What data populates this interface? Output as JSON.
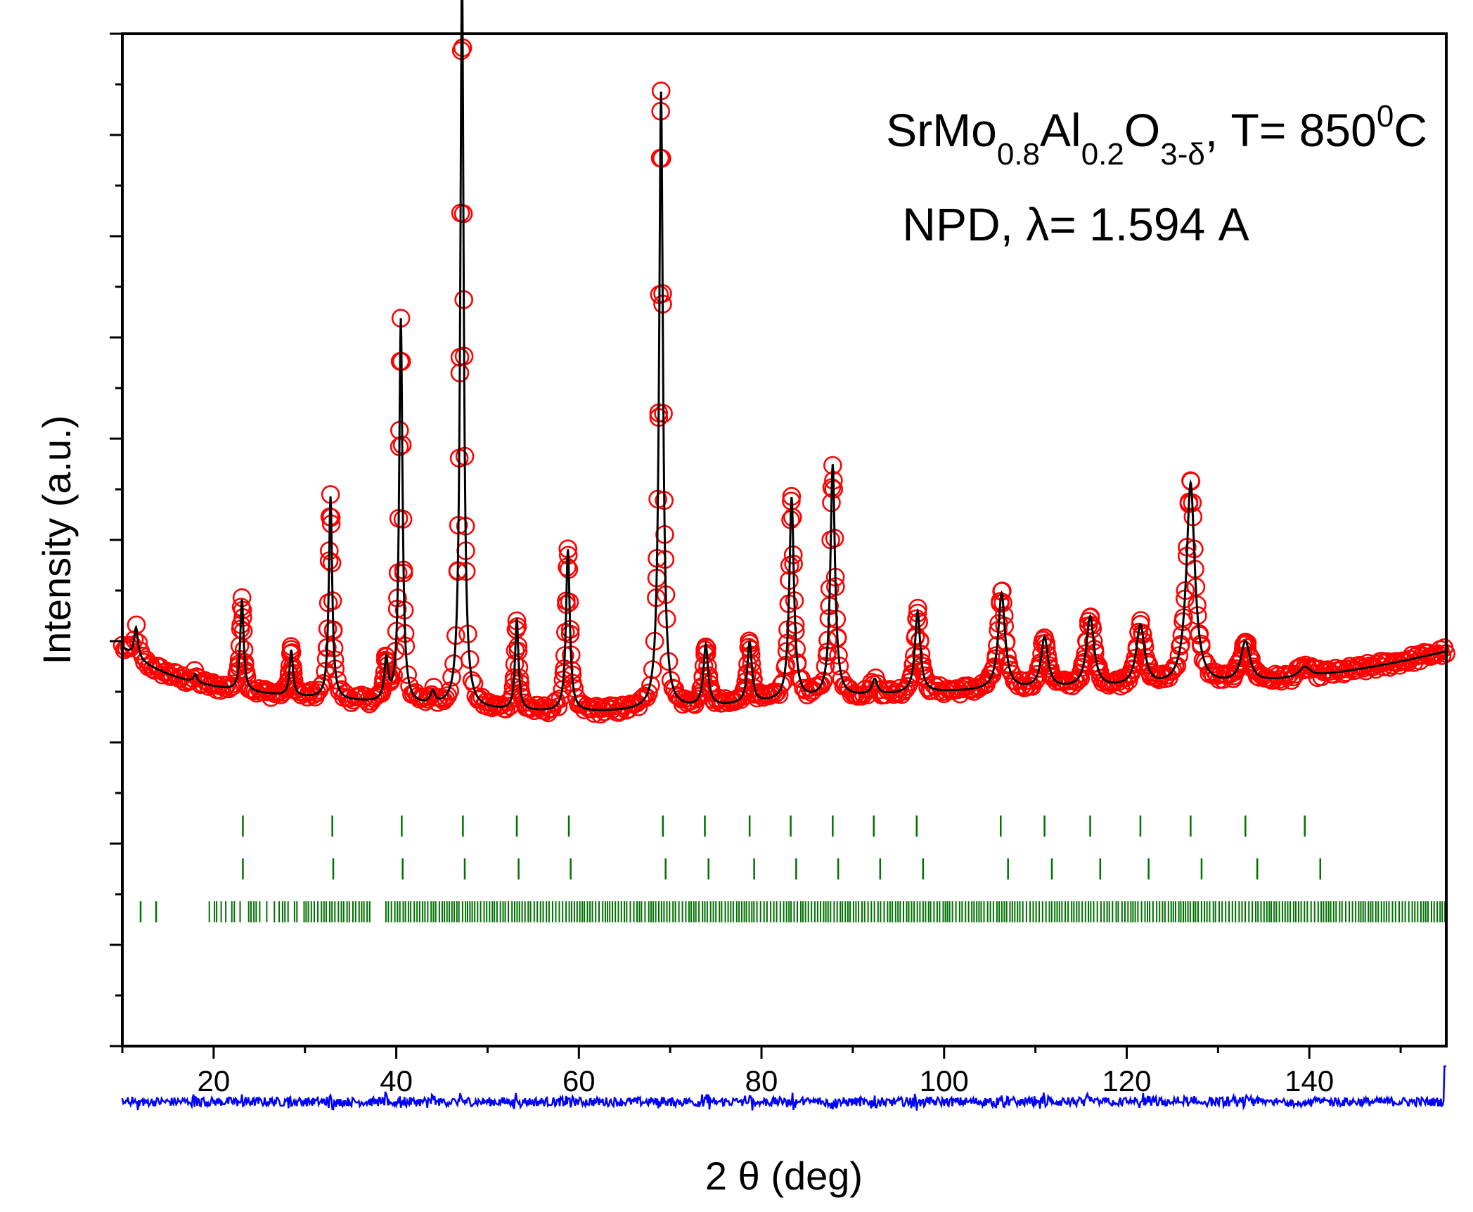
{
  "chart_data": {
    "type": "scatter",
    "title": "",
    "xlabel": "2 θ (deg)",
    "ylabel": "Intensity (a.u.)",
    "xlim": [
      10,
      155
    ],
    "ylim": [
      0,
      10
    ],
    "x_ticks": [
      20,
      40,
      60,
      80,
      100,
      120,
      140
    ],
    "y_tick_labels_shown": false,
    "annotation": {
      "line1": {
        "main": "SrMo",
        "sub1": "0.8",
        "el2": "Al",
        "sub2": "0.2",
        "el3": "O",
        "sub3": "3-δ",
        "tail": ", T= 850",
        "sup": "0",
        "unit": "C"
      },
      "line2": "NPD, λ= 1.594 A"
    },
    "background": {
      "level": 3.5,
      "low_curve_x": 60,
      "high_end": 3.95
    },
    "peaks": [
      {
        "x": 11.5,
        "height": 0.3,
        "width": 0.25
      },
      {
        "x": 18.0,
        "height": 0.08,
        "width": 0.25
      },
      {
        "x": 23.1,
        "height": 0.9,
        "width": 0.22
      },
      {
        "x": 28.5,
        "height": 0.45,
        "width": 0.22
      },
      {
        "x": 32.8,
        "height": 2.0,
        "width": 0.22
      },
      {
        "x": 38.9,
        "height": 0.4,
        "width": 0.25
      },
      {
        "x": 40.5,
        "height": 3.8,
        "width": 0.22
      },
      {
        "x": 44.0,
        "height": 0.12,
        "width": 0.3
      },
      {
        "x": 47.2,
        "height": 7.3,
        "width": 0.22
      },
      {
        "x": 53.2,
        "height": 0.9,
        "width": 0.22
      },
      {
        "x": 58.8,
        "height": 1.6,
        "width": 0.25
      },
      {
        "x": 69.0,
        "height": 6.1,
        "width": 0.25
      },
      {
        "x": 73.9,
        "height": 0.6,
        "width": 0.3
      },
      {
        "x": 78.7,
        "height": 0.6,
        "width": 0.3
      },
      {
        "x": 83.3,
        "height": 2.0,
        "width": 0.3
      },
      {
        "x": 87.8,
        "height": 2.3,
        "width": 0.3
      },
      {
        "x": 92.4,
        "height": 0.15,
        "width": 0.35
      },
      {
        "x": 97.1,
        "height": 0.8,
        "width": 0.35
      },
      {
        "x": 106.3,
        "height": 0.95,
        "width": 0.45
      },
      {
        "x": 111.0,
        "height": 0.5,
        "width": 0.45
      },
      {
        "x": 116.0,
        "height": 0.7,
        "width": 0.5
      },
      {
        "x": 121.5,
        "height": 0.6,
        "width": 0.55
      },
      {
        "x": 127.0,
        "height": 2.0,
        "width": 0.55
      },
      {
        "x": 133.0,
        "height": 0.4,
        "width": 0.6
      },
      {
        "x": 139.5,
        "height": 0.1,
        "width": 0.7
      }
    ],
    "bragg_markers": {
      "row1": [
        23.2,
        33.0,
        40.6,
        47.3,
        53.2,
        58.9,
        69.2,
        73.8,
        78.7,
        83.2,
        87.8,
        92.3,
        97.0,
        106.2,
        111.0,
        116.0,
        121.5,
        127.0,
        133.0,
        139.5
      ],
      "row2": [
        23.2,
        33.1,
        40.7,
        47.5,
        53.4,
        59.1,
        69.5,
        74.2,
        79.2,
        83.8,
        88.4,
        93.0,
        97.7,
        107.0,
        111.8,
        117.1,
        122.4,
        128.2,
        134.3,
        141.2
      ],
      "row3_range": [
        12,
        155
      ],
      "row3_gaps": [
        [
          14,
          18
        ],
        [
          37.2,
          38.8
        ]
      ],
      "row3_density_per_degree": 3.2
    },
    "series": [
      {
        "name": "observed",
        "style": "open circles",
        "color": "#ff0000"
      },
      {
        "name": "calculated",
        "style": "line",
        "color": "#000000"
      },
      {
        "name": "difference",
        "style": "line",
        "color": "#0000ff",
        "baseline": -0.55
      },
      {
        "name": "phase 1 reflections",
        "style": "tick marks",
        "color": "#007000"
      },
      {
        "name": "phase 2 reflections",
        "style": "tick marks",
        "color": "#007000"
      },
      {
        "name": "phase 3 reflections",
        "style": "tick marks",
        "color": "#007000"
      }
    ]
  }
}
